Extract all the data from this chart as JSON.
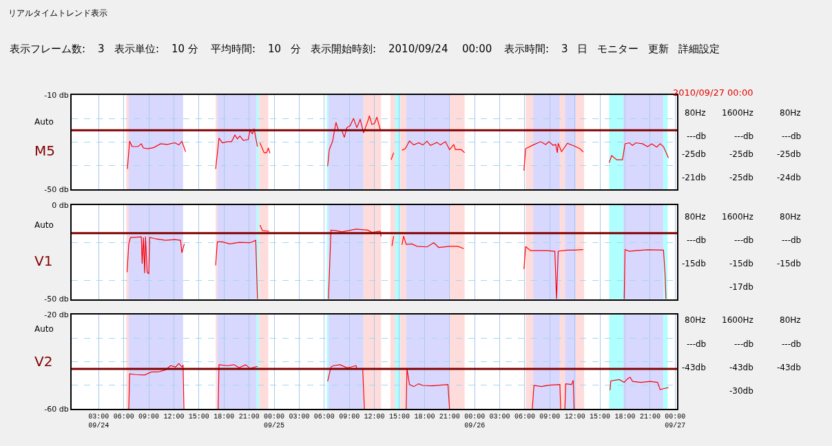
{
  "chart_data": [
    {
      "type": "other",
      "title": "リアルタイムトレンド表示",
      "annotations": [
        "表示フレーム数:",
        "3",
        "表示単位:",
        "10 分",
        "平均時間:",
        "10",
        "分",
        "表示開始時刻:",
        "2010/09/24",
        "00:00",
        "表示時間:",
        "3",
        "日",
        "モニター",
        "更新",
        "詳細設定"
      ]
    },
    {
      "type": "line",
      "ylabel": "M5",
      "annotations": [
        "Auto"
      ],
      "xlim": [
        "2010-09-23T23:45",
        "2010-09-27T00:15"
      ],
      "ylim": [
        -50,
        -10
      ],
      "grid": true,
      "tick_labels": "y",
      "xticks": [
        {
          "value": "2010-09-24T03:00",
          "label": null
        },
        {
          "value": "2010-09-24T06:00",
          "label": null
        },
        {
          "value": "2010-09-24T09:00",
          "label": null
        },
        {
          "value": "2010-09-24T12:00",
          "label": null
        },
        {
          "value": "2010-09-24T15:00",
          "label": null
        },
        {
          "value": "2010-09-24T18:00",
          "label": null
        },
        {
          "value": "2010-09-24T21:00",
          "label": null
        },
        {
          "value": "2010-09-25T00:00",
          "label": null
        },
        {
          "value": "2010-09-25T03:00",
          "label": null
        },
        {
          "value": "2010-09-25T06:00",
          "label": null
        },
        {
          "value": "2010-09-25T09:00",
          "label": null
        },
        {
          "value": "2010-09-25T12:00",
          "label": null
        },
        {
          "value": "2010-09-25T15:00",
          "label": null
        },
        {
          "value": "2010-09-25T18:00",
          "label": null
        },
        {
          "value": "2010-09-25T21:00",
          "label": null
        },
        {
          "value": "2010-09-26T00:00",
          "label": null
        },
        {
          "value": "2010-09-26T03:00",
          "label": null
        },
        {
          "value": "2010-09-26T06:00",
          "label": null
        },
        {
          "value": "2010-09-26T09:00",
          "label": null
        },
        {
          "value": "2010-09-26T12:00",
          "label": null
        },
        {
          "value": "2010-09-26T15:00",
          "label": null
        },
        {
          "value": "2010-09-26T18:00",
          "label": null
        },
        {
          "value": "2010-09-26T21:00",
          "label": null
        },
        {
          "value": "2010-09-27T00:00",
          "label": null
        }
      ],
      "yticks": [
        {
          "value": -10,
          "label": "-10 db"
        },
        {
          "value": -20,
          "label": null
        },
        {
          "value": -30,
          "label": null
        },
        {
          "value": -40,
          "label": null
        },
        {
          "value": -50,
          "label": "-50 db"
        }
      ],
      "ref_lines": [
        {
          "axis": "y",
          "value": -25,
          "color": "#800000"
        }
      ],
      "bands": [
        {
          "axis": "x",
          "from": "2010-09-24T06:18",
          "to": "2010-09-24T06:36",
          "color": "#ffdcdc"
        },
        {
          "axis": "x",
          "from": "2010-09-24T06:36",
          "to": "2010-09-24T13:06",
          "color": "#d8d8ff"
        },
        {
          "axis": "x",
          "from": "2010-09-24T17:00",
          "to": "2010-09-24T17:12",
          "color": "#ffdcdc"
        },
        {
          "axis": "x",
          "from": "2010-09-24T17:12",
          "to": "2010-09-24T21:54",
          "color": "#d8d8ff"
        },
        {
          "axis": "x",
          "from": "2010-09-24T21:54",
          "to": "2010-09-24T22:12",
          "color": "#b0ffff"
        },
        {
          "axis": "x",
          "from": "2010-09-24T22:12",
          "to": "2010-09-24T23:18",
          "color": "#ffdcdc"
        },
        {
          "axis": "x",
          "from": "2010-09-25T06:18",
          "to": "2010-09-25T06:30",
          "color": "#b0ffff"
        },
        {
          "axis": "x",
          "from": "2010-09-25T06:30",
          "to": "2010-09-25T10:42",
          "color": "#d8d8ff"
        },
        {
          "axis": "x",
          "from": "2010-09-25T10:42",
          "to": "2010-09-25T12:48",
          "color": "#ffdcdc"
        },
        {
          "axis": "x",
          "from": "2010-09-25T13:54",
          "to": "2010-09-25T14:30",
          "color": "#ffdcdc"
        },
        {
          "axis": "x",
          "from": "2010-09-25T14:30",
          "to": "2010-09-25T15:06",
          "color": "#b0ffff"
        },
        {
          "axis": "x",
          "from": "2010-09-25T15:06",
          "to": "2010-09-25T15:48",
          "color": "#ffdcdc"
        },
        {
          "axis": "x",
          "from": "2010-09-25T15:48",
          "to": "2010-09-25T21:00",
          "color": "#d8d8ff"
        },
        {
          "axis": "x",
          "from": "2010-09-25T21:00",
          "to": "2010-09-25T22:48",
          "color": "#ffdcdc"
        },
        {
          "axis": "x",
          "from": "2010-09-26T06:06",
          "to": "2010-09-26T07:00",
          "color": "#ffdcdc"
        },
        {
          "axis": "x",
          "from": "2010-09-26T07:00",
          "to": "2010-09-26T10:12",
          "color": "#d8d8ff"
        },
        {
          "axis": "x",
          "from": "2010-09-26T10:12",
          "to": "2010-09-26T10:48",
          "color": "#ffdcdc"
        },
        {
          "axis": "x",
          "from": "2010-09-26T10:48",
          "to": "2010-09-26T12:06",
          "color": "#d8d8ff"
        },
        {
          "axis": "x",
          "from": "2010-09-26T12:06",
          "to": "2010-09-26T13:06",
          "color": "#ffdcdc"
        },
        {
          "axis": "x",
          "from": "2010-09-26T16:06",
          "to": "2010-09-26T17:48",
          "color": "#b0ffff"
        },
        {
          "axis": "x",
          "from": "2010-09-26T17:48",
          "to": "2010-09-26T22:36",
          "color": "#d8d8ff"
        },
        {
          "axis": "x",
          "from": "2010-09-26T22:36",
          "to": "2010-09-26T23:06",
          "color": "#b0ffff"
        }
      ],
      "series": [
        {
          "color": "#ff0000",
          "x": [
            "2010-09-24T06:26",
            "2010-09-24T06:42",
            "2010-09-24T07:00",
            "2010-09-24T07:42",
            "2010-09-24T08:06",
            "2010-09-24T08:21",
            "2010-09-24T08:54",
            "2010-09-24T09:36",
            "2010-09-24T10:24",
            "2010-09-24T11:12",
            "2010-09-24T12:06",
            "2010-09-24T12:36",
            "2010-09-24T12:57",
            "2010-09-24T13:24",
            "2010-09-24T15:00",
            "2010-09-24T17:00",
            "2010-09-24T17:24",
            "2010-09-24T17:48",
            "2010-09-24T18:24",
            "2010-09-24T18:54",
            "2010-09-24T19:18",
            "2010-09-24T19:36",
            "2010-09-24T19:54",
            "2010-09-24T20:18",
            "2010-09-24T20:54",
            "2010-09-24T21:06",
            "2010-09-24T21:24",
            "2010-09-24T21:36",
            "2010-09-24T22:00",
            "2010-09-24T22:09",
            "2010-09-24T22:18",
            "2010-09-24T22:48",
            "2010-09-24T23:06",
            "2010-09-24T23:18",
            "2010-09-24T23:30",
            "2010-09-25T03:00",
            "2010-09-25T06:24",
            "2010-09-25T06:36",
            "2010-09-25T07:00",
            "2010-09-25T07:24",
            "2010-09-25T07:42",
            "2010-09-25T08:06",
            "2010-09-25T08:24",
            "2010-09-25T08:42",
            "2010-09-25T09:06",
            "2010-09-25T09:30",
            "2010-09-25T09:54",
            "2010-09-25T10:18",
            "2010-09-25T10:42",
            "2010-09-25T11:12",
            "2010-09-25T11:24",
            "2010-09-25T11:42",
            "2010-09-25T12:00",
            "2010-09-25T12:18",
            "2010-09-25T12:42",
            "2010-09-25T13:30",
            "2010-09-25T14:00",
            "2010-09-25T14:18",
            "2010-09-25T14:48",
            "2010-09-25T15:18",
            "2010-09-25T15:42",
            "2010-09-25T16:12",
            "2010-09-25T16:42",
            "2010-09-25T17:18",
            "2010-09-25T17:48",
            "2010-09-25T18:18",
            "2010-09-25T18:42",
            "2010-09-25T19:30",
            "2010-09-25T19:54",
            "2010-09-25T20:30",
            "2010-09-25T21:00",
            "2010-09-25T21:30",
            "2010-09-25T21:42",
            "2010-09-25T22:24",
            "2010-09-25T22:48",
            "2010-09-26T02:00",
            "2010-09-26T05:54",
            "2010-09-26T06:06",
            "2010-09-26T07:00",
            "2010-09-26T07:54",
            "2010-09-26T08:30",
            "2010-09-26T08:54",
            "2010-09-26T09:24",
            "2010-09-26T09:42",
            "2010-09-26T09:54",
            "2010-09-26T10:00",
            "2010-09-26T10:24",
            "2010-09-26T11:06",
            "2010-09-26T11:54",
            "2010-09-26T12:36",
            "2010-09-26T13:00",
            "2010-09-26T14:30",
            "2010-09-26T16:06",
            "2010-09-26T16:24",
            "2010-09-26T17:00",
            "2010-09-26T17:42",
            "2010-09-26T18:00",
            "2010-09-26T18:30",
            "2010-09-26T18:54",
            "2010-09-26T19:18",
            "2010-09-26T20:06",
            "2010-09-26T20:42",
            "2010-09-26T21:12",
            "2010-09-26T21:48",
            "2010-09-26T22:12",
            "2010-09-26T22:36",
            "2010-09-26T23:12"
          ],
          "values": [
            -41.4,
            -29.6,
            -31.9,
            -31.9,
            -30.7,
            -32.5,
            -32.8,
            -32.3,
            -30.7,
            -31,
            -30.3,
            -31.2,
            -29.6,
            -34.1,
            null,
            -41.4,
            -28.3,
            -30.3,
            -29.8,
            -29.8,
            -27,
            -28.6,
            -27.4,
            -29.2,
            -28.9,
            -25,
            -26.5,
            -24.3,
            -31.9,
            null,
            -30.3,
            -34.5,
            -34.5,
            -32.5,
            -34.7,
            null,
            -40.3,
            -33.2,
            -29.6,
            -21.6,
            -25,
            -25,
            -28,
            -23.9,
            -23,
            -19.9,
            -23.9,
            -20.3,
            -26.1,
            -21.2,
            -18.8,
            -22.5,
            -22.1,
            -19.4,
            -24.7,
            null,
            -37.5,
            -34.5,
            null,
            -33.4,
            -32.8,
            -29.5,
            -31.2,
            -30.3,
            -31.2,
            -29.6,
            -31.4,
            -30.1,
            -31.2,
            -29.8,
            -33.2,
            -31,
            -33.2,
            -33.2,
            -34.5,
            null,
            -42.1,
            -32.8,
            -31.2,
            -29.8,
            -31,
            -29.8,
            -31.4,
            -31,
            -34.5,
            -30.5,
            -34.1,
            -30.5,
            -31.6,
            -32.8,
            -34.2,
            null,
            -38.7,
            -35.7,
            -37.5,
            -37.5,
            -30.7,
            -30.3,
            -31.4,
            -30.3,
            -30.7,
            -31.9,
            -30.7,
            -32.1,
            -30.7,
            -31.9,
            -36.7
          ]
        }
      ]
    },
    {
      "type": "other",
      "title": "2010/09/27 00:00",
      "annotations": [
        "80Hz",
        "1600Hz",
        "80Hz",
        "---db",
        "---db",
        "---db",
        "-25db",
        "-25db",
        "-25db",
        "-21db",
        "-25db",
        "-24db"
      ]
    },
    {
      "type": "line",
      "ylabel": "V1",
      "annotations": [
        "Auto"
      ],
      "xlim": [
        "2010-09-23T23:45",
        "2010-09-27T00:15"
      ],
      "ylim": [
        -50,
        0
      ],
      "grid": true,
      "tick_labels": "y",
      "xticks": [
        {
          "value": "2010-09-24T03:00",
          "label": null
        },
        {
          "value": "2010-09-24T06:00",
          "label": null
        },
        {
          "value": "2010-09-24T09:00",
          "label": null
        },
        {
          "value": "2010-09-24T12:00",
          "label": null
        },
        {
          "value": "2010-09-24T15:00",
          "label": null
        },
        {
          "value": "2010-09-24T18:00",
          "label": null
        },
        {
          "value": "2010-09-24T21:00",
          "label": null
        },
        {
          "value": "2010-09-25T00:00",
          "label": null
        },
        {
          "value": "2010-09-25T03:00",
          "label": null
        },
        {
          "value": "2010-09-25T06:00",
          "label": null
        },
        {
          "value": "2010-09-25T09:00",
          "label": null
        },
        {
          "value": "2010-09-25T12:00",
          "label": null
        },
        {
          "value": "2010-09-25T15:00",
          "label": null
        },
        {
          "value": "2010-09-25T18:00",
          "label": null
        },
        {
          "value": "2010-09-25T21:00",
          "label": null
        },
        {
          "value": "2010-09-26T00:00",
          "label": null
        },
        {
          "value": "2010-09-26T03:00",
          "label": null
        },
        {
          "value": "2010-09-26T06:00",
          "label": null
        },
        {
          "value": "2010-09-26T09:00",
          "label": null
        },
        {
          "value": "2010-09-26T12:00",
          "label": null
        },
        {
          "value": "2010-09-26T15:00",
          "label": null
        },
        {
          "value": "2010-09-26T18:00",
          "label": null
        },
        {
          "value": "2010-09-26T21:00",
          "label": null
        },
        {
          "value": "2010-09-27T00:00",
          "label": null
        }
      ],
      "yticks": [
        {
          "value": 0,
          "label": "0 db"
        },
        {
          "value": -20,
          "label": null
        },
        {
          "value": -40,
          "label": null
        },
        {
          "value": -50,
          "label": "-50 db"
        }
      ],
      "ref_lines": [
        {
          "axis": "y",
          "value": -15,
          "color": "#800000"
        }
      ],
      "bands": [
        {
          "axis": "x",
          "from": "2010-09-24T06:18",
          "to": "2010-09-24T06:36",
          "color": "#ffdcdc"
        },
        {
          "axis": "x",
          "from": "2010-09-24T06:36",
          "to": "2010-09-24T13:06",
          "color": "#d8d8ff"
        },
        {
          "axis": "x",
          "from": "2010-09-24T17:00",
          "to": "2010-09-24T17:12",
          "color": "#ffdcdc"
        },
        {
          "axis": "x",
          "from": "2010-09-24T17:12",
          "to": "2010-09-24T21:54",
          "color": "#d8d8ff"
        },
        {
          "axis": "x",
          "from": "2010-09-24T21:54",
          "to": "2010-09-24T22:12",
          "color": "#b0ffff"
        },
        {
          "axis": "x",
          "from": "2010-09-24T22:12",
          "to": "2010-09-24T23:18",
          "color": "#ffdcdc"
        },
        {
          "axis": "x",
          "from": "2010-09-25T06:18",
          "to": "2010-09-25T06:30",
          "color": "#b0ffff"
        },
        {
          "axis": "x",
          "from": "2010-09-25T06:30",
          "to": "2010-09-25T10:42",
          "color": "#d8d8ff"
        },
        {
          "axis": "x",
          "from": "2010-09-25T10:42",
          "to": "2010-09-25T12:48",
          "color": "#ffdcdc"
        },
        {
          "axis": "x",
          "from": "2010-09-25T13:54",
          "to": "2010-09-25T14:30",
          "color": "#ffdcdc"
        },
        {
          "axis": "x",
          "from": "2010-09-25T14:30",
          "to": "2010-09-25T15:06",
          "color": "#b0ffff"
        },
        {
          "axis": "x",
          "from": "2010-09-25T15:06",
          "to": "2010-09-25T15:48",
          "color": "#ffdcdc"
        },
        {
          "axis": "x",
          "from": "2010-09-25T15:48",
          "to": "2010-09-25T21:00",
          "color": "#d8d8ff"
        },
        {
          "axis": "x",
          "from": "2010-09-25T21:00",
          "to": "2010-09-25T22:48",
          "color": "#ffdcdc"
        },
        {
          "axis": "x",
          "from": "2010-09-26T06:06",
          "to": "2010-09-26T07:00",
          "color": "#ffdcdc"
        },
        {
          "axis": "x",
          "from": "2010-09-26T07:00",
          "to": "2010-09-26T10:12",
          "color": "#d8d8ff"
        },
        {
          "axis": "x",
          "from": "2010-09-26T10:12",
          "to": "2010-09-26T10:48",
          "color": "#ffdcdc"
        },
        {
          "axis": "x",
          "from": "2010-09-26T10:48",
          "to": "2010-09-26T12:06",
          "color": "#d8d8ff"
        },
        {
          "axis": "x",
          "from": "2010-09-26T12:06",
          "to": "2010-09-26T13:06",
          "color": "#ffdcdc"
        },
        {
          "axis": "x",
          "from": "2010-09-26T16:06",
          "to": "2010-09-26T17:48",
          "color": "#b0ffff"
        },
        {
          "axis": "x",
          "from": "2010-09-26T17:48",
          "to": "2010-09-26T22:36",
          "color": "#d8d8ff"
        },
        {
          "axis": "x",
          "from": "2010-09-26T22:36",
          "to": "2010-09-26T23:06",
          "color": "#b0ffff"
        }
      ],
      "series": [
        {
          "color": "#ff0000",
          "x": [
            "2010-09-24T06:24",
            "2010-09-24T06:36",
            "2010-09-24T06:48",
            "2010-09-24T08:06",
            "2010-09-24T08:12",
            "2010-09-24T08:21",
            "2010-09-24T08:30",
            "2010-09-24T08:36",
            "2010-09-24T08:48",
            "2010-09-24T09:00",
            "2010-09-24T09:06",
            "2010-09-24T09:54",
            "2010-09-24T11:00",
            "2010-09-24T12:06",
            "2010-09-24T12:48",
            "2010-09-24T12:57",
            "2010-09-24T13:15",
            "2010-09-24T15:00",
            "2010-09-24T17:00",
            "2010-09-24T17:12",
            "2010-09-24T17:48",
            "2010-09-24T18:42",
            "2010-09-24T19:48",
            "2010-09-24T21:06",
            "2010-09-24T21:48",
            "2010-09-24T22:00",
            "2010-09-24T22:09",
            "2010-09-24T22:18",
            "2010-09-24T22:36",
            "2010-09-24T23:24",
            "2010-09-25T03:00",
            "2010-09-25T06:30",
            "2010-09-25T06:48",
            "2010-09-25T07:24",
            "2010-09-25T08:06",
            "2010-09-25T09:48",
            "2010-09-25T11:12",
            "2010-09-25T11:42",
            "2010-09-25T12:42",
            "2010-09-25T12:48",
            "2010-09-25T13:30",
            "2010-09-25T14:06",
            "2010-09-25T14:18",
            "2010-09-25T14:48",
            "2010-09-25T15:18",
            "2010-09-25T15:30",
            "2010-09-25T15:48",
            "2010-09-25T16:30",
            "2010-09-25T17:06",
            "2010-09-25T18:18",
            "2010-09-25T19:06",
            "2010-09-25T19:42",
            "2010-09-25T21:00",
            "2010-09-25T22:00",
            "2010-09-25T22:42",
            "2010-09-26T02:00",
            "2010-09-26T05:54",
            "2010-09-26T06:06",
            "2010-09-26T06:42",
            "2010-09-26T08:36",
            "2010-09-26T09:36",
            "2010-09-26T09:48",
            "2010-09-26T10:00",
            "2010-09-26T11:06",
            "2010-09-26T11:54",
            "2010-09-26T13:00",
            "2010-09-26T15:30",
            "2010-09-26T17:54",
            "2010-09-26T18:00",
            "2010-09-26T18:30",
            "2010-09-26T19:18",
            "2010-09-26T20:42",
            "2010-09-26T22:36",
            "2010-09-26T22:48",
            "2010-09-26T22:54"
          ],
          "values": [
            -35.7,
            -20.7,
            -17.3,
            -17,
            -31.2,
            -17.3,
            -36.2,
            -16.8,
            -35.7,
            -36.6,
            -17.3,
            -18.1,
            -18.8,
            -18.4,
            -18.8,
            -25.4,
            -20.7,
            null,
            -32.1,
            -19.6,
            -19.6,
            -20.7,
            -19.9,
            -20.1,
            -18.8,
            -50,
            null,
            -10.7,
            -13.7,
            -14,
            null,
            -50,
            -13.4,
            -13.7,
            -14.3,
            -12.9,
            -13.4,
            -14.6,
            -14,
            -16.8,
            null,
            -21.8,
            -16.6,
            null,
            -21.2,
            -16.6,
            -21,
            -20.7,
            -22,
            -22.3,
            -20.1,
            -22.6,
            -22,
            -22,
            -23.2,
            null,
            -34,
            -22.1,
            -24.3,
            -24.3,
            -24.6,
            -50,
            -24.6,
            -24,
            -24,
            -23.7,
            null,
            -50,
            -23.7,
            -24.6,
            -24.3,
            -23.8,
            -24,
            -37.3,
            -50
          ]
        }
      ]
    },
    {
      "type": "other",
      "annotations": [
        "80Hz",
        "1600Hz",
        "80Hz",
        "---db",
        "---db",
        "---db",
        "-15db",
        "-15db",
        "-15db",
        "-17db"
      ]
    },
    {
      "type": "line",
      "ylabel": "V2",
      "annotations": [
        "Auto"
      ],
      "xlim": [
        "2010-09-23T23:45",
        "2010-09-27T00:15"
      ],
      "ylim": [
        -60,
        -20
      ],
      "grid": true,
      "xticks": [
        {
          "value": "2010-09-24T03:00",
          "label": "03:00\n09/24"
        },
        {
          "value": "2010-09-24T06:00",
          "label": "06:00"
        },
        {
          "value": "2010-09-24T09:00",
          "label": "09:00"
        },
        {
          "value": "2010-09-24T12:00",
          "label": "12:00"
        },
        {
          "value": "2010-09-24T15:00",
          "label": "15:00"
        },
        {
          "value": "2010-09-24T18:00",
          "label": "18:00"
        },
        {
          "value": "2010-09-24T21:00",
          "label": "21:00"
        },
        {
          "value": "2010-09-25T00:00",
          "label": "00:00\n09/25"
        },
        {
          "value": "2010-09-25T03:00",
          "label": "03:00"
        },
        {
          "value": "2010-09-25T06:00",
          "label": "06:00"
        },
        {
          "value": "2010-09-25T09:00",
          "label": "09:00"
        },
        {
          "value": "2010-09-25T12:00",
          "label": "12:00"
        },
        {
          "value": "2010-09-25T15:00",
          "label": "15:00"
        },
        {
          "value": "2010-09-25T18:00",
          "label": "18:00"
        },
        {
          "value": "2010-09-25T21:00",
          "label": "21:00"
        },
        {
          "value": "2010-09-26T00:00",
          "label": "00:00\n09/26"
        },
        {
          "value": "2010-09-26T03:00",
          "label": "03:00"
        },
        {
          "value": "2010-09-26T06:00",
          "label": "06:00"
        },
        {
          "value": "2010-09-26T09:00",
          "label": "09:00"
        },
        {
          "value": "2010-09-26T12:00",
          "label": "12:00"
        },
        {
          "value": "2010-09-26T15:00",
          "label": "15:00"
        },
        {
          "value": "2010-09-26T18:00",
          "label": "18:00"
        },
        {
          "value": "2010-09-26T21:00",
          "label": "21:00"
        },
        {
          "value": "2010-09-27T00:00",
          "label": "00:00\n09/27"
        }
      ],
      "yticks": [
        {
          "value": -20,
          "label": "-20 db"
        },
        {
          "value": -30,
          "label": null
        },
        {
          "value": -40,
          "label": null
        },
        {
          "value": -50,
          "label": null
        },
        {
          "value": -60,
          "label": "-60 db"
        }
      ],
      "ref_lines": [
        {
          "axis": "y",
          "value": -43,
          "color": "#800000"
        }
      ],
      "bands": [
        {
          "axis": "x",
          "from": "2010-09-24T06:18",
          "to": "2010-09-24T06:36",
          "color": "#ffdcdc"
        },
        {
          "axis": "x",
          "from": "2010-09-24T06:36",
          "to": "2010-09-24T13:06",
          "color": "#d8d8ff"
        },
        {
          "axis": "x",
          "from": "2010-09-24T17:00",
          "to": "2010-09-24T17:12",
          "color": "#ffdcdc"
        },
        {
          "axis": "x",
          "from": "2010-09-24T17:12",
          "to": "2010-09-24T21:54",
          "color": "#d8d8ff"
        },
        {
          "axis": "x",
          "from": "2010-09-24T21:54",
          "to": "2010-09-24T22:12",
          "color": "#b0ffff"
        },
        {
          "axis": "x",
          "from": "2010-09-24T22:12",
          "to": "2010-09-24T23:18",
          "color": "#ffdcdc"
        },
        {
          "axis": "x",
          "from": "2010-09-25T06:18",
          "to": "2010-09-25T06:30",
          "color": "#b0ffff"
        },
        {
          "axis": "x",
          "from": "2010-09-25T06:30",
          "to": "2010-09-25T10:42",
          "color": "#d8d8ff"
        },
        {
          "axis": "x",
          "from": "2010-09-25T10:42",
          "to": "2010-09-25T12:48",
          "color": "#ffdcdc"
        },
        {
          "axis": "x",
          "from": "2010-09-25T13:54",
          "to": "2010-09-25T14:30",
          "color": "#ffdcdc"
        },
        {
          "axis": "x",
          "from": "2010-09-25T14:30",
          "to": "2010-09-25T15:06",
          "color": "#b0ffff"
        },
        {
          "axis": "x",
          "from": "2010-09-25T15:06",
          "to": "2010-09-25T15:48",
          "color": "#ffdcdc"
        },
        {
          "axis": "x",
          "from": "2010-09-25T15:48",
          "to": "2010-09-25T21:00",
          "color": "#d8d8ff"
        },
        {
          "axis": "x",
          "from": "2010-09-25T21:00",
          "to": "2010-09-25T22:48",
          "color": "#ffdcdc"
        },
        {
          "axis": "x",
          "from": "2010-09-26T06:06",
          "to": "2010-09-26T07:00",
          "color": "#ffdcdc"
        },
        {
          "axis": "x",
          "from": "2010-09-26T07:00",
          "to": "2010-09-26T10:12",
          "color": "#d8d8ff"
        },
        {
          "axis": "x",
          "from": "2010-09-26T10:12",
          "to": "2010-09-26T10:48",
          "color": "#ffdcdc"
        },
        {
          "axis": "x",
          "from": "2010-09-26T10:48",
          "to": "2010-09-26T12:06",
          "color": "#d8d8ff"
        },
        {
          "axis": "x",
          "from": "2010-09-26T12:06",
          "to": "2010-09-26T13:06",
          "color": "#ffdcdc"
        },
        {
          "axis": "x",
          "from": "2010-09-26T16:06",
          "to": "2010-09-26T17:48",
          "color": "#b0ffff"
        },
        {
          "axis": "x",
          "from": "2010-09-26T17:48",
          "to": "2010-09-26T22:36",
          "color": "#d8d8ff"
        },
        {
          "axis": "x",
          "from": "2010-09-26T22:36",
          "to": "2010-09-26T23:06",
          "color": "#b0ffff"
        }
      ],
      "series": [
        {
          "color": "#ff0000",
          "x": [
            "2010-09-24T06:36",
            "2010-09-24T06:42",
            "2010-09-24T07:24",
            "2010-09-24T08:30",
            "2010-09-24T09:18",
            "2010-09-24T10:06",
            "2010-09-24T11:00",
            "2010-09-24T11:36",
            "2010-09-24T12:12",
            "2010-09-24T12:36",
            "2010-09-24T12:57",
            "2010-09-24T13:06",
            "2010-09-24T13:12",
            "2010-09-24T15:00",
            "2010-09-24T17:18",
            "2010-09-24T17:24",
            "2010-09-24T18:24",
            "2010-09-24T19:12",
            "2010-09-24T19:48",
            "2010-09-24T20:36",
            "2010-09-24T21:06",
            "2010-09-24T22:00",
            "2010-09-25T02:00",
            "2010-09-25T06:24",
            "2010-09-25T06:48",
            "2010-09-25T07:06",
            "2010-09-25T07:54",
            "2010-09-25T08:42",
            "2010-09-25T09:12",
            "2010-09-25T09:48",
            "2010-09-25T09:54",
            "2010-09-25T10:36",
            "2010-09-25T10:48",
            "2010-09-25T13:00",
            "2010-09-25T15:48",
            "2010-09-25T15:54",
            "2010-09-25T16:12",
            "2010-09-25T16:42",
            "2010-09-25T17:18",
            "2010-09-25T17:48",
            "2010-09-25T18:54",
            "2010-09-25T19:48",
            "2010-09-25T20:48",
            "2010-09-25T21:00",
            "2010-09-26T02:00",
            "2010-09-26T06:54",
            "2010-09-26T07:06",
            "2010-09-26T08:00",
            "2010-09-26T08:54",
            "2010-09-26T10:12",
            "2010-09-26T10:18",
            "2010-09-26T10:30",
            "2010-09-26T10:48",
            "2010-09-26T10:54",
            "2010-09-26T11:36",
            "2010-09-26T11:48",
            "2010-09-26T11:54",
            "2010-09-26T14:00",
            "2010-09-26T16:12",
            "2010-09-26T16:18",
            "2010-09-26T17:18",
            "2010-09-26T17:54",
            "2010-09-26T18:18",
            "2010-09-26T18:36",
            "2010-09-26T18:54",
            "2010-09-26T19:54",
            "2010-09-26T21:00",
            "2010-09-26T21:54",
            "2010-09-26T22:12",
            "2010-09-26T22:36",
            "2010-09-26T23:12"
          ],
          "values": [
            -60,
            -45.1,
            -45.4,
            -45.6,
            -44.3,
            -44.3,
            -43.4,
            -41.6,
            -42.2,
            -40.7,
            -42.2,
            -41.3,
            -60,
            null,
            -60,
            -41.2,
            -41.6,
            -41.2,
            -42.5,
            -41.2,
            -42.8,
            -41.9,
            null,
            -48.3,
            -42.2,
            -41.6,
            -41.2,
            -42.5,
            -42.2,
            -41.6,
            -43.1,
            -42.8,
            -60,
            null,
            -60,
            -42.9,
            -49.6,
            -50.5,
            -49.3,
            -50,
            -50.2,
            -49.9,
            -49.6,
            -60,
            null,
            -60,
            -50,
            -50.5,
            -49.9,
            -49.6,
            -60,
            null,
            -60,
            -49.3,
            -49.6,
            -47.8,
            -60,
            null,
            -52,
            -48.1,
            -47.5,
            -48.7,
            -47.2,
            -46.5,
            -48.3,
            -48.7,
            -48.3,
            -48.7,
            -51.8,
            -51.4,
            -50.9
          ]
        }
      ]
    },
    {
      "type": "other",
      "annotations": [
        "80Hz",
        "1600Hz",
        "80Hz",
        "---db",
        "---db",
        "---db",
        "-43db",
        "-43db",
        "-43db",
        "-30db"
      ]
    }
  ]
}
